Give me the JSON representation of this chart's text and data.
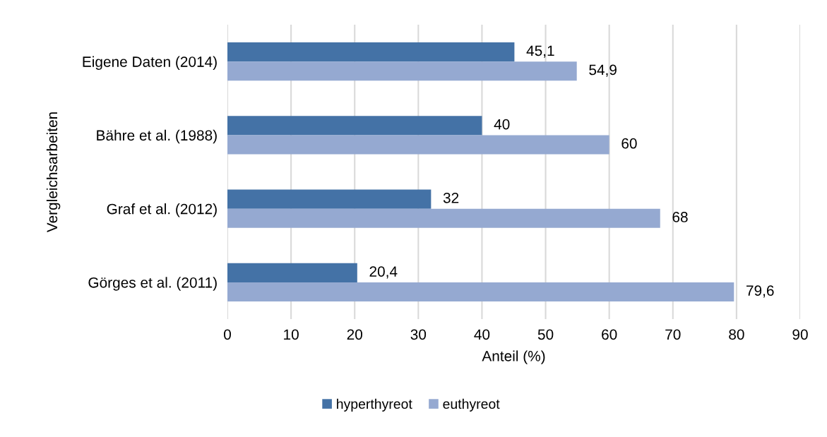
{
  "chart_data": {
    "type": "bar",
    "orientation": "horizontal",
    "xlabel": "Anteil (%)",
    "ylabel": "Vergleichsarbeiten",
    "categories": [
      "Eigene Daten (2014)",
      "Bähre et al. (1988)",
      "Graf et al. (2012)",
      "Görges et al. (2011)"
    ],
    "series": [
      {
        "name": "hyperthyreot",
        "color": "#4472a6",
        "values": [
          45.1,
          40,
          32,
          20.4
        ],
        "value_labels": [
          "45,1",
          "40",
          "32",
          "20,4"
        ]
      },
      {
        "name": "euthyreot",
        "color": "#95a9d1",
        "values": [
          54.9,
          60,
          68,
          79.6
        ],
        "value_labels": [
          "54,9",
          "60",
          "68",
          "79,6"
        ]
      }
    ],
    "xlim": [
      0,
      90
    ],
    "xticks": [
      0,
      10,
      20,
      30,
      40,
      50,
      60,
      70,
      80,
      90
    ],
    "grid": "x",
    "legend": "bottom"
  }
}
